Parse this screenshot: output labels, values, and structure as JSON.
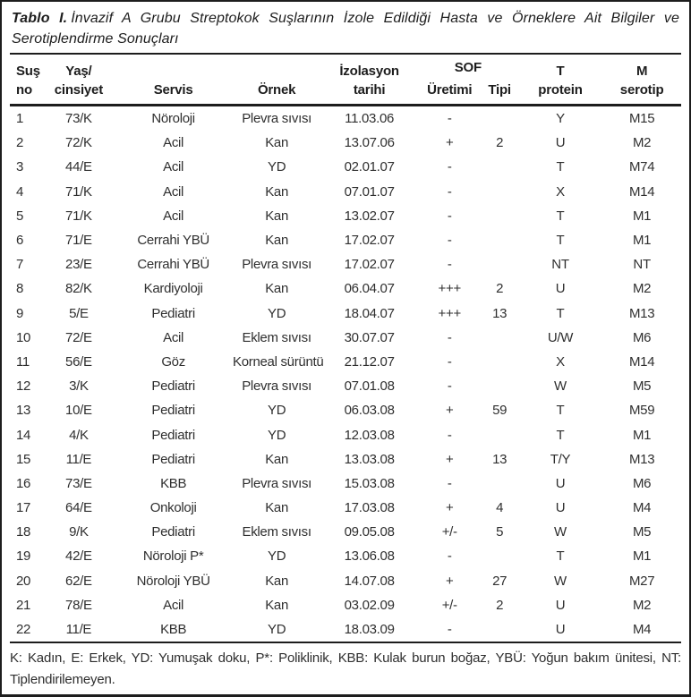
{
  "title": {
    "label": "Tablo I.",
    "text": "İnvazif A Grubu Streptokok Suşlarının İzole Edildiği Hasta ve Örneklere Ait Bilgiler ve Serotiplendirme Sonuçları"
  },
  "header": {
    "strain_no": [
      "Suş",
      "no"
    ],
    "age_sex": [
      "Yaş/",
      "cinsiyet"
    ],
    "service": "Servis",
    "specimen": "Örnek",
    "isolation_date": [
      "İzolasyon",
      "tarihi"
    ],
    "sof": "SOF",
    "sof_production": "Üretimi",
    "sof_type": "Tipi",
    "t_protein": [
      "T",
      "protein"
    ],
    "m_serotype": [
      "M",
      "serotip"
    ]
  },
  "rows": [
    [
      "1",
      "73/K",
      "Nöroloji",
      "Plevra sıvısı",
      "11.03.06",
      "-",
      "",
      "Y",
      "M15"
    ],
    [
      "2",
      "72/K",
      "Acil",
      "Kan",
      "13.07.06",
      "+",
      "2",
      "U",
      "M2"
    ],
    [
      "3",
      "44/E",
      "Acil",
      "YD",
      "02.01.07",
      "-",
      "",
      "T",
      "M74"
    ],
    [
      "4",
      "71/K",
      "Acil",
      "Kan",
      "07.01.07",
      "-",
      "",
      "X",
      "M14"
    ],
    [
      "5",
      "71/K",
      "Acil",
      "Kan",
      "13.02.07",
      "-",
      "",
      "T",
      "M1"
    ],
    [
      "6",
      "71/E",
      "Cerrahi YBÜ",
      "Kan",
      "17.02.07",
      "-",
      "",
      "T",
      "M1"
    ],
    [
      "7",
      "23/E",
      "Cerrahi YBÜ",
      "Plevra sıvısı",
      "17.02.07",
      "-",
      "",
      "NT",
      "NT"
    ],
    [
      "8",
      "82/K",
      "Kardiyoloji",
      "Kan",
      "06.04.07",
      "+++",
      "2",
      "U",
      "M2"
    ],
    [
      "9",
      "5/E",
      "Pediatri",
      "YD",
      "18.04.07",
      "+++",
      "13",
      "T",
      "M13"
    ],
    [
      "10",
      "72/E",
      "Acil",
      "Eklem sıvısı",
      "30.07.07",
      "-",
      "",
      "U/W",
      "M6"
    ],
    [
      "11",
      "56/E",
      "Göz",
      "Korneal sürüntü",
      "21.12.07",
      "-",
      "",
      "X",
      "M14"
    ],
    [
      "12",
      "3/K",
      "Pediatri",
      "Plevra sıvısı",
      "07.01.08",
      "-",
      "",
      "W",
      "M5"
    ],
    [
      "13",
      "10/E",
      "Pediatri",
      "YD",
      "06.03.08",
      "+",
      "59",
      "T",
      "M59"
    ],
    [
      "14",
      "4/K",
      "Pediatri",
      "YD",
      "12.03.08",
      "-",
      "",
      "T",
      "M1"
    ],
    [
      "15",
      "11/E",
      "Pediatri",
      "Kan",
      "13.03.08",
      "+",
      "13",
      "T/Y",
      "M13"
    ],
    [
      "16",
      "73/E",
      "KBB",
      "Plevra sıvısı",
      "15.03.08",
      "-",
      "",
      "U",
      "M6"
    ],
    [
      "17",
      "64/E",
      "Onkoloji",
      "Kan",
      "17.03.08",
      "+",
      "4",
      "U",
      "M4"
    ],
    [
      "18",
      "9/K",
      "Pediatri",
      "Eklem sıvısı",
      "09.05.08",
      "+/-",
      "5",
      "W",
      "M5"
    ],
    [
      "19",
      "42/E",
      "Nöroloji P*",
      "YD",
      "13.06.08",
      "-",
      "",
      "T",
      "M1"
    ],
    [
      "20",
      "62/E",
      "Nöroloji YBÜ",
      "Kan",
      "14.07.08",
      "+",
      "27",
      "W",
      "M27"
    ],
    [
      "21",
      "78/E",
      "Acil",
      "Kan",
      "03.02.09",
      "+/-",
      "2",
      "U",
      "M2"
    ],
    [
      "22",
      "11/E",
      "KBB",
      "YD",
      "18.03.09",
      "-",
      "",
      "U",
      "M4"
    ]
  ],
  "footnote": "K: Kadın, E: Erkek, YD: Yumuşak doku, P*: Poliklinik, KBB: Kulak burun boğaz, YBÜ: Yoğun bakım ünitesi, NT: Tiplendirilemeyen."
}
